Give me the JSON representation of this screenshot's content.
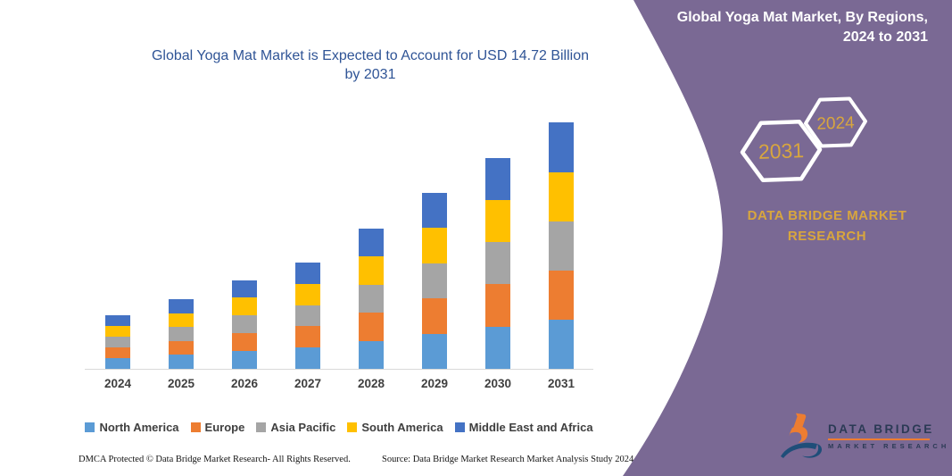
{
  "title": {
    "full": "Global Yoga Mat Market is Expected to Account for USD 14.72 Billion by 2031"
  },
  "chart_data": {
    "type": "bar",
    "stacked": true,
    "title": "Global Yoga Mat Market is Expected to Account for USD 14.72 Billion by 2031",
    "title_lines": [
      "Global Yoga Mat Market is Expected to Account for USD 14.72 Billion",
      "by 2031"
    ],
    "unit": "USD Billion",
    "categories": [
      "2024",
      "2025",
      "2026",
      "2027",
      "2028",
      "2029",
      "2030",
      "2031"
    ],
    "series": [
      {
        "name": "North America",
        "color": "#5B9BD5",
        "values": [
          0.64,
          0.83,
          1.06,
          1.27,
          1.68,
          2.1,
          2.52,
          2.94
        ]
      },
      {
        "name": "Europe",
        "color": "#ED7D31",
        "values": [
          0.64,
          0.83,
          1.06,
          1.27,
          1.68,
          2.1,
          2.52,
          2.94
        ]
      },
      {
        "name": "Asia Pacific",
        "color": "#A5A5A5",
        "values": [
          0.64,
          0.83,
          1.06,
          1.27,
          1.68,
          2.1,
          2.52,
          2.94
        ]
      },
      {
        "name": "South America",
        "color": "#FFC000",
        "values": [
          0.64,
          0.83,
          1.06,
          1.27,
          1.68,
          2.1,
          2.52,
          2.94
        ]
      },
      {
        "name": "Middle East and Africa",
        "color": "#4472C4",
        "values": [
          0.64,
          0.83,
          1.06,
          1.27,
          1.68,
          2.1,
          2.52,
          2.96
        ]
      }
    ],
    "totals": [
      3.2,
      4.15,
      5.3,
      6.35,
      8.4,
      10.5,
      12.6,
      14.72
    ],
    "ylim": [
      0,
      15.6
    ],
    "y_axis_visible": false,
    "grid": false,
    "legend_position": "bottom"
  },
  "panel": {
    "heading_lines": [
      "Global Yoga Mat Market, By Regions,",
      "2024 to 2031"
    ],
    "hexagons": [
      {
        "label": "2031"
      },
      {
        "label": "2024"
      }
    ],
    "brand_lines": [
      "DATA BRIDGE MARKET",
      "RESEARCH"
    ],
    "colors": {
      "background": "#7A6994",
      "gold": "#D8A63E",
      "hex_stroke": "#FFFFFF"
    }
  },
  "logo": {
    "wordmark": "DATA BRIDGE",
    "subtext": "MARKET RESEARCH"
  },
  "footer": {
    "left": "DMCA Protected © Data Bridge Market Research-  All Rights Reserved.",
    "source": "Source: Data Bridge Market Research  Market Analysis Study 2024"
  }
}
